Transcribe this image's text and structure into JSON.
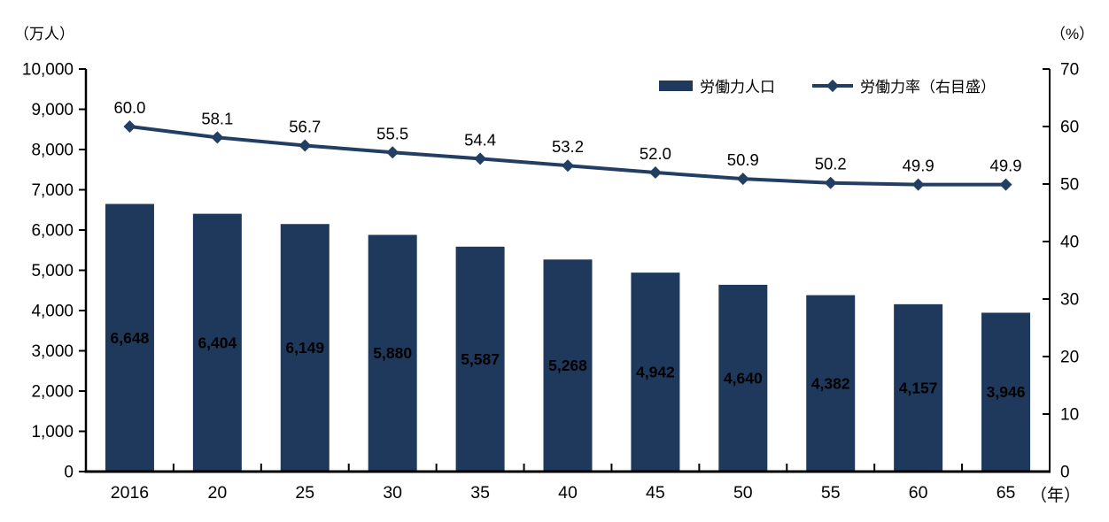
{
  "units": {
    "left": "（万人）",
    "right": "（%）",
    "x": "（年）"
  },
  "legend": {
    "bar": {
      "label": "労働力人口"
    },
    "line": {
      "label": "労働力率（右目盛）"
    }
  },
  "colors": {
    "bar": "#1f395c",
    "line": "#223e63",
    "axis": "#000000",
    "text": "#000000",
    "bar_label": "#ffffff",
    "background": "#ffffff"
  },
  "chart_data": {
    "type": "bar",
    "title": "",
    "categories": [
      "2016",
      "20",
      "25",
      "30",
      "35",
      "40",
      "45",
      "50",
      "55",
      "60",
      "65"
    ],
    "series": [
      {
        "name": "労働力人口",
        "type": "bar",
        "axis": "left",
        "values": [
          6648,
          6404,
          6149,
          5880,
          5587,
          5268,
          4942,
          4640,
          4382,
          4157,
          3946
        ],
        "value_labels": [
          "6,648",
          "6,404",
          "6,149",
          "5,880",
          "5,587",
          "5,268",
          "4,942",
          "4,640",
          "4,382",
          "4,157",
          "3,946"
        ]
      },
      {
        "name": "労働力率（右目盛）",
        "type": "line",
        "axis": "right",
        "values": [
          60.0,
          58.1,
          56.7,
          55.5,
          54.4,
          53.2,
          52.0,
          50.9,
          50.2,
          49.9,
          49.9
        ],
        "value_labels": [
          "60.0",
          "58.1",
          "56.7",
          "55.5",
          "54.4",
          "53.2",
          "52.0",
          "50.9",
          "50.2",
          "49.9",
          "49.9"
        ]
      }
    ],
    "left_axis": {
      "label": "（万人）",
      "min": 0,
      "max": 10000,
      "step": 1000,
      "tick_labels": [
        "0",
        "1,000",
        "2,000",
        "3,000",
        "4,000",
        "5,000",
        "6,000",
        "7,000",
        "8,000",
        "9,000",
        "10,000"
      ]
    },
    "right_axis": {
      "label": "（%）",
      "min": 0,
      "max": 70,
      "step": 10,
      "tick_labels": [
        "0",
        "10",
        "20",
        "30",
        "40",
        "50",
        "60",
        "70"
      ]
    },
    "x_axis": {
      "label": "（年）"
    },
    "grid": false,
    "legend_position": "top-right"
  }
}
